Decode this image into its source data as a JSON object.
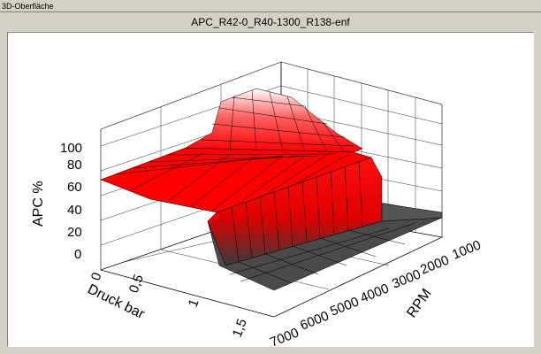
{
  "window": {
    "title": "3D-Oberfläche"
  },
  "plot": {
    "title": "APC_R42-0_R40-1300_R138-enf"
  },
  "chart_data": {
    "type": "surface",
    "title": "APC_R42-0_R40-1300_R138-enf",
    "x_axis": {
      "label": "Druck bar",
      "ticks": [
        "0",
        "0,5",
        "1",
        "1,5"
      ],
      "range": [
        0,
        1.5
      ]
    },
    "y_axis": {
      "label": "RPM",
      "ticks": [
        "1000",
        "2000",
        "3000",
        "4000",
        "5000",
        "6000",
        "7000"
      ],
      "range": [
        1000,
        7000
      ]
    },
    "z_axis": {
      "label": "APC %",
      "ticks": [
        "0",
        "20",
        "40",
        "60",
        "80",
        "100"
      ],
      "range": [
        0,
        100
      ]
    },
    "grid": true,
    "colormap": [
      "#ff0000",
      "#ffffff",
      "#303030"
    ],
    "surface_description": "Plateau near 60 % at low pressure, steps to a ridge up to 100 % around 0.8 bar in the low/mid RPM band, then falls to about 10 % above 1 bar."
  }
}
